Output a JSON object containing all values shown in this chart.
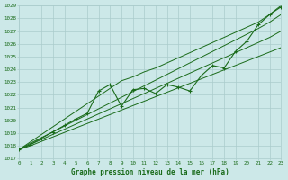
{
  "title": "Graphe pression niveau de la mer (hPa)",
  "bg_color": "#cce8e8",
  "grid_color": "#aacccc",
  "line_color": "#1a6b1a",
  "x_min": 0,
  "x_max": 23,
  "y_min": 1017,
  "y_max": 1029,
  "hours": [
    0,
    1,
    2,
    3,
    4,
    5,
    6,
    7,
    8,
    9,
    10,
    11,
    12,
    13,
    14,
    15,
    16,
    17,
    18,
    19,
    20,
    21,
    22,
    23
  ],
  "measured": [
    1017.7,
    1018.1,
    1018.6,
    1019.1,
    1019.6,
    1020.1,
    1020.55,
    1022.3,
    1022.8,
    1021.1,
    1022.4,
    1022.5,
    1022.1,
    1022.8,
    1022.6,
    1022.3,
    1023.5,
    1024.3,
    1024.1,
    1025.4,
    1026.2,
    1027.5,
    1028.3,
    1028.9
  ],
  "trend_low": [
    1017.7,
    1018.0,
    1018.35,
    1018.7,
    1019.05,
    1019.4,
    1019.75,
    1020.1,
    1020.45,
    1020.8,
    1021.15,
    1021.5,
    1021.85,
    1022.2,
    1022.55,
    1022.9,
    1023.25,
    1023.6,
    1023.95,
    1024.3,
    1024.65,
    1025.0,
    1025.35,
    1025.7
  ],
  "trend_mid": [
    1017.7,
    1018.1,
    1018.5,
    1018.9,
    1019.3,
    1019.7,
    1020.1,
    1020.5,
    1020.9,
    1021.3,
    1021.7,
    1022.1,
    1022.5,
    1022.9,
    1023.3,
    1023.7,
    1024.1,
    1024.5,
    1024.9,
    1025.3,
    1025.7,
    1026.1,
    1026.5,
    1027.0
  ],
  "trend_high": [
    1017.7,
    1018.2,
    1018.65,
    1019.1,
    1019.55,
    1020.0,
    1020.45,
    1020.9,
    1021.35,
    1021.8,
    1022.25,
    1022.7,
    1023.15,
    1023.6,
    1024.05,
    1024.5,
    1024.95,
    1025.4,
    1025.85,
    1026.3,
    1026.75,
    1027.2,
    1027.7,
    1028.3
  ],
  "extra_high": [
    1017.7,
    1018.3,
    1018.9,
    1019.5,
    1020.1,
    1020.7,
    1021.3,
    1021.9,
    1022.5,
    1023.1,
    1023.4,
    1023.8,
    1024.1,
    1024.5,
    1024.9,
    1025.3,
    1025.7,
    1026.1,
    1026.5,
    1026.9,
    1027.3,
    1027.7,
    1028.3,
    1029.0
  ]
}
